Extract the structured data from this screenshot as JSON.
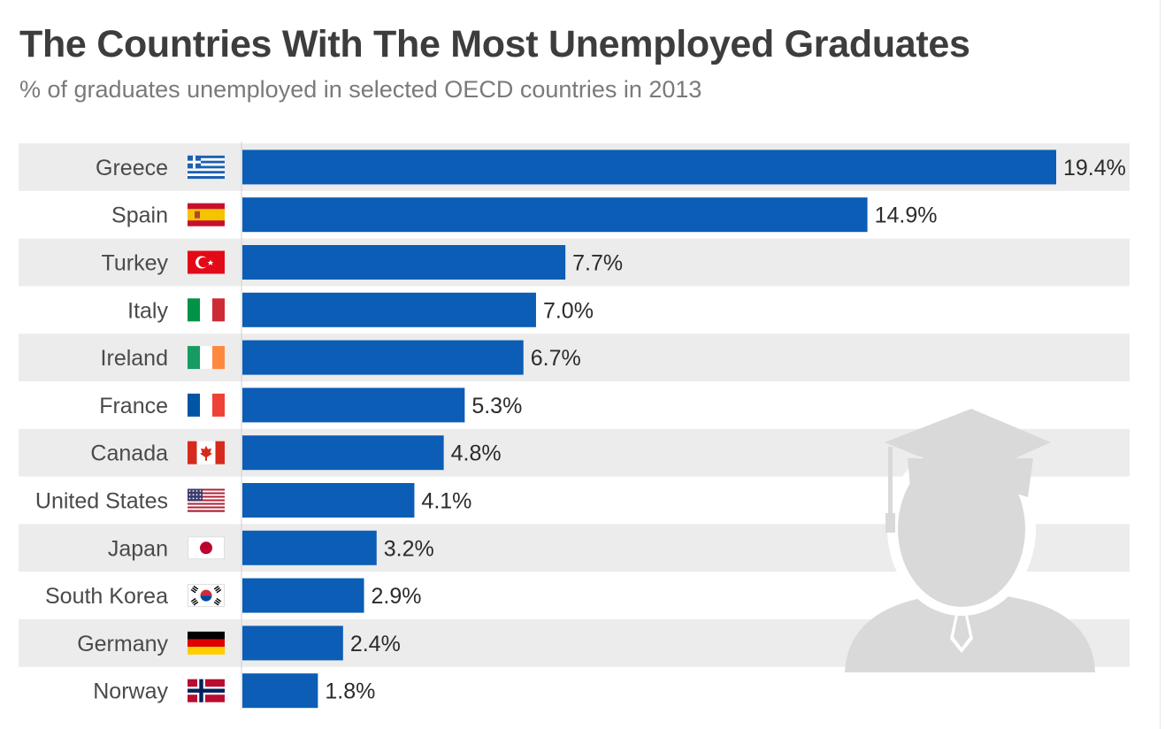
{
  "title": "The Countries With The Most Unemployed Graduates",
  "subtitle": "% of graduates unemployed in selected OECD countries in 2013",
  "colors": {
    "bar": "#0b5db6",
    "stripe": "#ececec",
    "text": "#4a4a4a"
  },
  "chart_data": {
    "type": "bar",
    "orientation": "horizontal",
    "title": "The Countries With The Most Unemployed Graduates",
    "subtitle": "% of graduates unemployed in selected OECD countries in 2013",
    "categories": [
      "Greece",
      "Spain",
      "Turkey",
      "Italy",
      "Ireland",
      "France",
      "Canada",
      "United States",
      "Japan",
      "South Korea",
      "Germany",
      "Norway"
    ],
    "values": [
      19.4,
      14.9,
      7.7,
      7.0,
      6.7,
      5.3,
      4.8,
      4.1,
      3.2,
      2.9,
      2.4,
      1.8
    ],
    "value_labels": [
      "19.4%",
      "14.9%",
      "7.7%",
      "7.0%",
      "6.7%",
      "5.3%",
      "4.8%",
      "4.1%",
      "3.2%",
      "2.9%",
      "2.4%",
      "1.8%"
    ],
    "flag_icons": [
      "greece-flag-icon",
      "spain-flag-icon",
      "turkey-flag-icon",
      "italy-flag-icon",
      "ireland-flag-icon",
      "france-flag-icon",
      "canada-flag-icon",
      "united-states-flag-icon",
      "japan-flag-icon",
      "south-korea-flag-icon",
      "germany-flag-icon",
      "norway-flag-icon"
    ],
    "xlim": [
      0,
      19.4
    ],
    "grid": false,
    "legend": "none",
    "decoration": "graduate-silhouette-icon"
  }
}
